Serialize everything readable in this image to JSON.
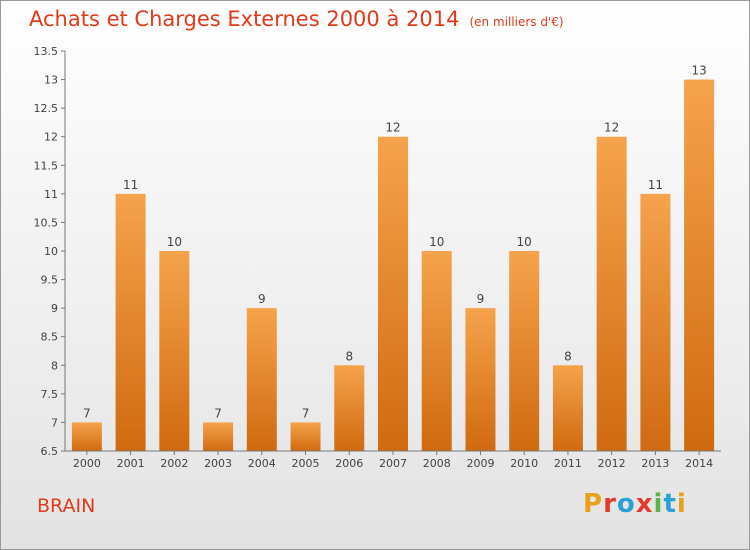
{
  "chart_data": {
    "type": "bar",
    "title": "Achats et Charges Externes 2000 à 2014",
    "subtitle": "(en milliers d'€)",
    "categories": [
      "2000",
      "2001",
      "2002",
      "2003",
      "2004",
      "2005",
      "2006",
      "2007",
      "2008",
      "2009",
      "2010",
      "2011",
      "2012",
      "2013",
      "2014"
    ],
    "values": [
      7,
      11,
      10,
      7,
      9,
      7,
      8,
      12,
      10,
      9,
      10,
      8,
      12,
      11,
      13
    ],
    "ylim": [
      6.5,
      13.5
    ],
    "yticks": [
      6.5,
      7,
      7.5,
      8,
      8.5,
      9,
      9.5,
      10,
      10.5,
      11,
      11.5,
      12,
      12.5,
      13,
      13.5
    ],
    "ytick_labels": [
      "6.5",
      "7",
      "7.5",
      "8",
      "8.5",
      "9",
      "9.5",
      "10",
      "10.5",
      "11",
      "11.5",
      "12",
      "12.5",
      "13",
      "13.5"
    ],
    "grid": false,
    "bar_color_top": "#f5a34c",
    "bar_color_bottom": "#d06a10",
    "xlabel": "",
    "ylabel": ""
  },
  "place_name": "BRAIN",
  "logo": {
    "text": "Proxiti",
    "colors": [
      "#e8a11a",
      "#e33b2b",
      "#2aa0d8",
      "#e33b2b",
      "#5bb540",
      "#2aa0d8",
      "#e8a11a"
    ]
  }
}
